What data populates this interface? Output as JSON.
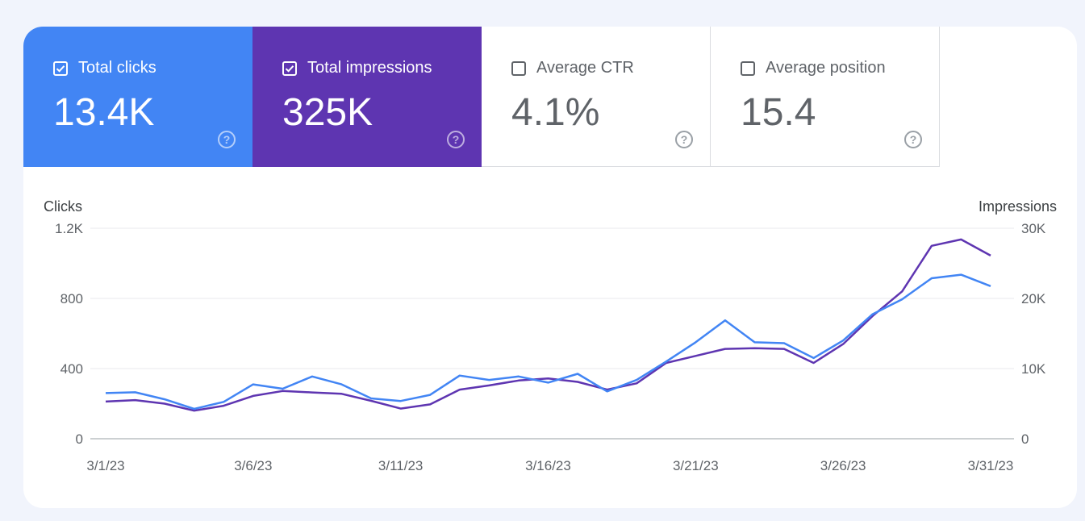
{
  "metrics": [
    {
      "label": "Total clicks",
      "value": "13.4K",
      "checked": true
    },
    {
      "label": "Total impressions",
      "value": "325K",
      "checked": true
    },
    {
      "label": "Average CTR",
      "value": "4.1%",
      "checked": false
    },
    {
      "label": "Average position",
      "value": "15.4",
      "checked": false
    }
  ],
  "colors": {
    "clicks": "#4285f4",
    "impressions": "#5e35b1",
    "grid": "#e8eaed",
    "axis": "#9aa0a6",
    "text": "#5f6368"
  },
  "chart_data": {
    "type": "line",
    "ylabel_left": "Clicks",
    "ylabel_right": "Impressions",
    "y_left_ticks": [
      "0",
      "400",
      "800",
      "1.2K"
    ],
    "y_right_ticks": [
      "0",
      "10K",
      "20K",
      "30K"
    ],
    "ylim_left": [
      0,
      1200
    ],
    "ylim_right": [
      0,
      30000
    ],
    "x_ticks": [
      "3/1/23",
      "3/6/23",
      "3/11/23",
      "3/16/23",
      "3/21/23",
      "3/26/23",
      "3/31/23"
    ],
    "x": [
      "3/1/23",
      "3/2/23",
      "3/3/23",
      "3/4/23",
      "3/5/23",
      "3/6/23",
      "3/7/23",
      "3/8/23",
      "3/9/23",
      "3/10/23",
      "3/11/23",
      "3/12/23",
      "3/13/23",
      "3/14/23",
      "3/15/23",
      "3/16/23",
      "3/17/23",
      "3/18/23",
      "3/19/23",
      "3/20/23",
      "3/21/23",
      "3/22/23",
      "3/23/23",
      "3/24/23",
      "3/25/23",
      "3/26/23",
      "3/27/23",
      "3/28/23",
      "3/29/23",
      "3/30/23",
      "3/31/23"
    ],
    "series": [
      {
        "name": "Clicks",
        "axis": "left",
        "values": [
          260,
          265,
          225,
          170,
          210,
          310,
          285,
          355,
          310,
          230,
          215,
          250,
          360,
          335,
          355,
          320,
          370,
          270,
          335,
          440,
          550,
          675,
          550,
          545,
          460,
          560,
          710,
          795,
          915,
          935,
          870
        ]
      },
      {
        "name": "Impressions",
        "axis": "right",
        "values": [
          5300,
          5500,
          5000,
          4000,
          4700,
          6100,
          6800,
          6600,
          6400,
          5400,
          4300,
          4900,
          7000,
          7600,
          8300,
          8600,
          8100,
          7000,
          7900,
          10800,
          11800,
          12800,
          12900,
          12800,
          10800,
          13500,
          17500,
          21000,
          27500,
          28400,
          26100
        ]
      }
    ],
    "grid": true
  }
}
